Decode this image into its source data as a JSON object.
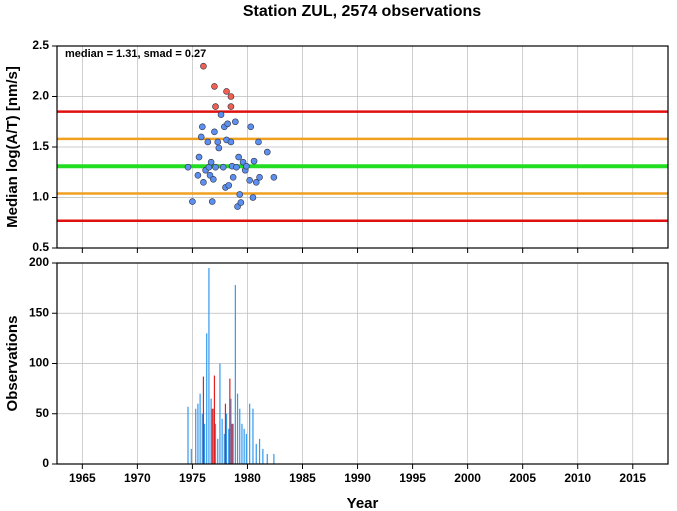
{
  "chart_data": [
    {
      "type": "scatter",
      "title": "Station ZUL, 2574 observations",
      "ylabel": "Median log(A/T) [nm/s]",
      "annotation": "median = 1.31, smad = 0.27",
      "xlim": [
        1962.7,
        2018.2
      ],
      "xticks": [
        1965,
        1970,
        1975,
        1980,
        1985,
        1990,
        1995,
        2000,
        2005,
        2010,
        2015
      ],
      "ylim": [
        0.5,
        2.5
      ],
      "yticks": [
        0.5,
        {
          "value": 1,
          "label": "1.0"
        },
        1.5,
        {
          "value": 2,
          "label": "2.0"
        },
        2.5
      ],
      "grid": true,
      "hlines": [
        {
          "value": 1.85,
          "color": "#e01010"
        },
        {
          "value": 1.58,
          "color": "#f0a020"
        },
        {
          "value": 1.31,
          "color": "#22dd22"
        },
        {
          "value": 1.04,
          "color": "#f0a020"
        },
        {
          "value": 0.77,
          "color": "#e01010"
        }
      ],
      "series": [
        {
          "color": "#5b8ff0",
          "x": [
            1974.6,
            1975.0,
            1975.5,
            1975.6,
            1975.8,
            1975.9,
            1976.0,
            1976.2,
            1976.4,
            1976.5,
            1976.6,
            1976.7,
            1976.8,
            1976.9,
            1977.0,
            1977.1,
            1977.3,
            1977.4,
            1977.6,
            1977.8,
            1977.9,
            1978.0,
            1978.1,
            1978.2,
            1978.3,
            1978.5,
            1978.6,
            1978.7,
            1978.9,
            1979.0,
            1979.1,
            1979.2,
            1979.3,
            1979.4,
            1979.6,
            1979.8,
            1979.9,
            1980.2,
            1980.3,
            1980.5,
            1980.6,
            1980.8,
            1981.0,
            1981.1,
            1981.8,
            1982.4
          ],
          "values": [
            1.3,
            0.96,
            1.22,
            1.4,
            1.6,
            1.7,
            1.15,
            1.27,
            1.55,
            1.3,
            1.22,
            1.35,
            0.96,
            1.18,
            1.65,
            1.3,
            1.55,
            1.49,
            1.82,
            1.3,
            1.7,
            1.1,
            1.57,
            1.73,
            1.12,
            1.55,
            1.31,
            1.2,
            1.75,
            1.3,
            0.91,
            1.4,
            1.03,
            0.95,
            1.35,
            1.27,
            1.31,
            1.17,
            1.7,
            1.0,
            1.36,
            1.15,
            1.55,
            1.2,
            1.45,
            1.2
          ]
        },
        {
          "color": "#f06050",
          "x": [
            1976.0,
            1977.0,
            1977.1,
            1978.1,
            1978.5,
            1978.5
          ],
          "values": [
            2.3,
            2.1,
            1.9,
            2.05,
            2.0,
            1.9
          ]
        }
      ]
    },
    {
      "type": "bar",
      "ylabel": "Observations",
      "xlabel": "Year",
      "xlim": [
        1962.7,
        2018.2
      ],
      "xticks": [
        1965,
        1970,
        1975,
        1980,
        1985,
        1990,
        1995,
        2000,
        2005,
        2010,
        2015
      ],
      "ylim": [
        0,
        200
      ],
      "yticks": [
        0,
        50,
        100,
        150,
        200
      ],
      "grid": true,
      "series": [
        {
          "color": "#3399ee",
          "x": [
            1974.6,
            1974.9,
            1975.3,
            1975.5,
            1975.7,
            1975.9,
            1976.1,
            1976.3,
            1976.5,
            1976.7,
            1976.9,
            1977.1,
            1977.3,
            1977.5,
            1977.7,
            1977.9,
            1978.1,
            1978.3,
            1978.5,
            1978.7,
            1978.9,
            1979.1,
            1979.3,
            1979.5,
            1979.7,
            1979.9,
            1980.2,
            1980.5,
            1980.8,
            1981.1,
            1981.4,
            1981.8,
            1982.4
          ],
          "values": [
            57,
            15,
            55,
            60,
            70,
            50,
            40,
            130,
            195,
            65,
            55,
            40,
            25,
            100,
            45,
            30,
            50,
            35,
            65,
            40,
            178,
            70,
            55,
            40,
            35,
            30,
            60,
            55,
            20,
            25,
            15,
            10,
            10
          ]
        },
        {
          "color": "#e02020",
          "x": [
            1976.0,
            1976.8,
            1977.0,
            1978.0,
            1978.4,
            1978.6
          ],
          "values": [
            87,
            55,
            88,
            60,
            85,
            40
          ]
        }
      ]
    }
  ]
}
